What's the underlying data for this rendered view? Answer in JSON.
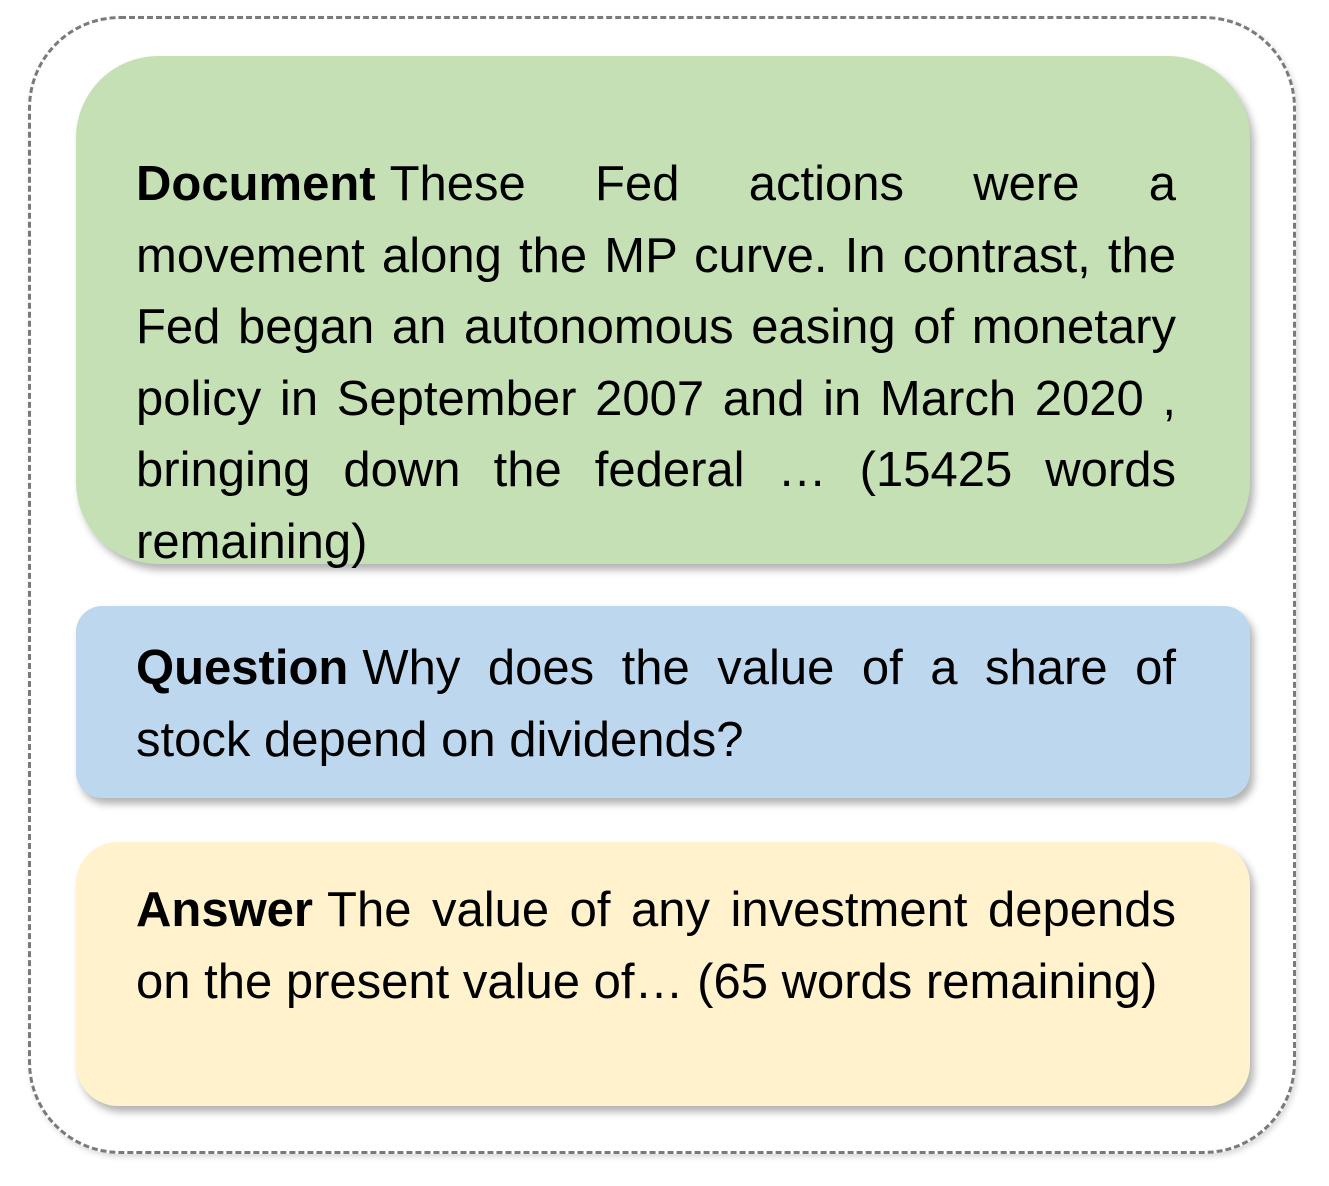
{
  "colors": {
    "document_bg": "#c5e0b4",
    "question_bg": "#bdd7ee",
    "answer_bg": "#fff2cc",
    "frame_border": "#7a7a7a"
  },
  "document": {
    "label": "Document",
    "text": "These Fed actions were a movement along the MP curve. In contrast, the Fed began an autonomous easing of monetary policy in September 2007 and in March 2020 , bringing down the federal … (15425 words remaining)"
  },
  "question": {
    "label": "Question",
    "text": "Why does the value of a share of stock depend on dividends?"
  },
  "answer": {
    "label": "Answer",
    "text": "The value of any investment depends on the present value of… (65 words remaining)"
  }
}
